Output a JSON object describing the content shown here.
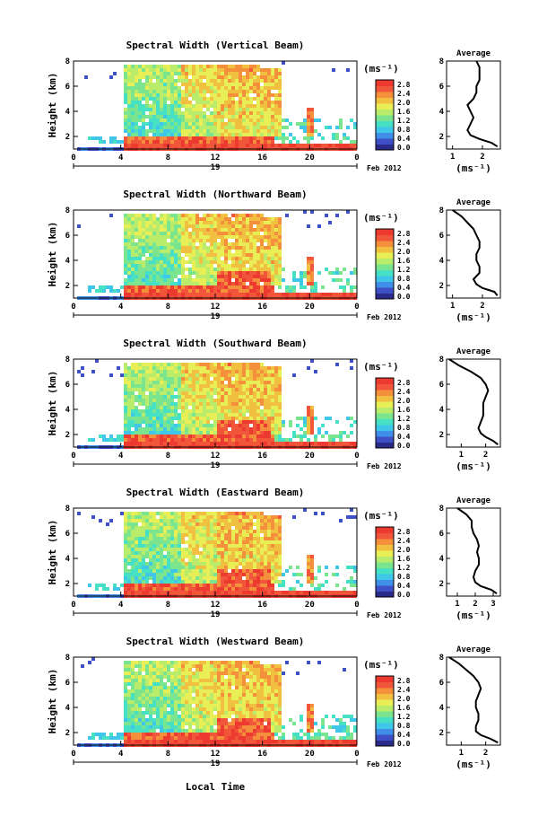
{
  "figure": {
    "xlabel": "Local Time",
    "date_label": "Feb 2012",
    "day_label": "19",
    "ylabel": "Height (km)",
    "unit_label": "(ms⁻¹)",
    "avg_title": "Average",
    "avg_xlabel": "(ms⁻¹)"
  },
  "colorbar": {
    "ticks": [
      "2.8",
      "2.4",
      "2.0",
      "1.6",
      "1.2",
      "0.8",
      "0.4",
      "0.0"
    ],
    "colors": [
      "#2a2a8a",
      "#3f4fc6",
      "#3f8ee8",
      "#3fc6e8",
      "#46e0c4",
      "#7ae58e",
      "#b8ec6a",
      "#e8ee55",
      "#f2c040",
      "#f4903c",
      "#f2563a",
      "#ec3a30"
    ]
  },
  "chart_data": [
    {
      "type": "heatmap",
      "title": "Spectral Width (Vertical Beam)",
      "x_ticks": [
        "0",
        "4",
        "8",
        "12",
        "16",
        "20",
        "0"
      ],
      "y_ticks": [
        "2",
        "4",
        "6",
        "8"
      ],
      "xlim": [
        0,
        24
      ],
      "ylim": [
        1,
        8
      ],
      "avg_profile": {
        "x_ticks": [
          "1",
          "2"
        ],
        "xlim": [
          0.8,
          2.6
        ],
        "ylim": [
          1,
          8
        ],
        "x": [
          2.5,
          2.3,
          1.9,
          1.6,
          1.5,
          1.6,
          1.7,
          1.6,
          1.5,
          1.7,
          1.8,
          1.8,
          1.9,
          1.9,
          1.9,
          1.8
        ],
        "y": [
          1.2,
          1.5,
          1.8,
          2.1,
          2.5,
          3.0,
          3.5,
          4.0,
          4.5,
          5.0,
          5.5,
          6.0,
          6.5,
          7.0,
          7.5,
          8.0
        ]
      }
    },
    {
      "type": "heatmap",
      "title": "Spectral Width (Northward Beam)",
      "x_ticks": [
        "0",
        "4",
        "8",
        "12",
        "16",
        "20",
        "0"
      ],
      "y_ticks": [
        "2",
        "4",
        "6",
        "8"
      ],
      "xlim": [
        0,
        24
      ],
      "ylim": [
        1,
        8
      ],
      "avg_profile": {
        "x_ticks": [
          "1",
          "2"
        ],
        "xlim": [
          0.8,
          2.6
        ],
        "ylim": [
          1,
          8
        ],
        "x": [
          2.5,
          2.4,
          2.0,
          1.8,
          1.7,
          1.9,
          1.9,
          1.8,
          1.8,
          1.9,
          1.9,
          1.8,
          1.7,
          1.5,
          1.3,
          1.0
        ],
        "y": [
          1.2,
          1.5,
          1.8,
          2.1,
          2.5,
          3.0,
          3.5,
          4.0,
          4.5,
          5.0,
          5.5,
          6.0,
          6.5,
          7.0,
          7.5,
          8.0
        ]
      }
    },
    {
      "type": "heatmap",
      "title": "Spectral Width (Southward Beam)",
      "x_ticks": [
        "0",
        "4",
        "8",
        "12",
        "16",
        "20",
        "0"
      ],
      "y_ticks": [
        "2",
        "4",
        "6",
        "8"
      ],
      "xlim": [
        0,
        24
      ],
      "ylim": [
        1,
        8
      ],
      "avg_profile": {
        "x_ticks": [
          "1",
          "2"
        ],
        "xlim": [
          0.4,
          2.6
        ],
        "ylim": [
          1,
          8
        ],
        "x": [
          2.5,
          2.3,
          2.0,
          1.8,
          1.7,
          1.8,
          1.9,
          1.9,
          1.9,
          2.0,
          2.1,
          2.0,
          1.8,
          1.4,
          0.9,
          0.5
        ],
        "y": [
          1.2,
          1.5,
          1.8,
          2.1,
          2.5,
          3.0,
          3.5,
          4.0,
          4.5,
          5.0,
          5.5,
          6.0,
          6.5,
          7.0,
          7.5,
          8.0
        ]
      }
    },
    {
      "type": "heatmap",
      "title": "Spectral Width (Eastward Beam)",
      "x_ticks": [
        "0",
        "4",
        "8",
        "12",
        "16",
        "20",
        "0"
      ],
      "y_ticks": [
        "2",
        "4",
        "6",
        "8"
      ],
      "xlim": [
        0,
        24
      ],
      "ylim": [
        1,
        8
      ],
      "avg_profile": {
        "x_ticks": [
          "1",
          "2",
          "3"
        ],
        "xlim": [
          0.4,
          3.4
        ],
        "ylim": [
          1,
          8
        ],
        "x": [
          3.2,
          2.9,
          2.3,
          2.0,
          1.9,
          2.0,
          2.2,
          2.2,
          2.1,
          2.2,
          2.1,
          1.9,
          1.8,
          1.8,
          1.5,
          1.0
        ],
        "y": [
          1.2,
          1.5,
          1.8,
          2.1,
          2.5,
          3.0,
          3.5,
          4.0,
          4.5,
          5.0,
          5.5,
          6.0,
          6.5,
          7.0,
          7.5,
          8.0
        ]
      }
    },
    {
      "type": "heatmap",
      "title": "Spectral Width (Westward Beam)",
      "x_ticks": [
        "0",
        "4",
        "8",
        "12",
        "16",
        "20",
        "0"
      ],
      "y_ticks": [
        "2",
        "4",
        "6",
        "8"
      ],
      "xlim": [
        0,
        24
      ],
      "ylim": [
        1,
        8
      ],
      "avg_profile": {
        "x_ticks": [
          "1",
          "2"
        ],
        "xlim": [
          0.4,
          2.6
        ],
        "ylim": [
          1,
          8
        ],
        "x": [
          2.5,
          2.2,
          1.8,
          1.6,
          1.6,
          1.7,
          1.7,
          1.6,
          1.6,
          1.7,
          1.8,
          1.7,
          1.5,
          1.2,
          0.9,
          0.5
        ],
        "y": [
          1.2,
          1.5,
          1.8,
          2.1,
          2.5,
          3.0,
          3.5,
          4.0,
          4.5,
          5.0,
          5.5,
          6.0,
          6.5,
          7.0,
          7.5,
          8.0
        ]
      }
    }
  ]
}
